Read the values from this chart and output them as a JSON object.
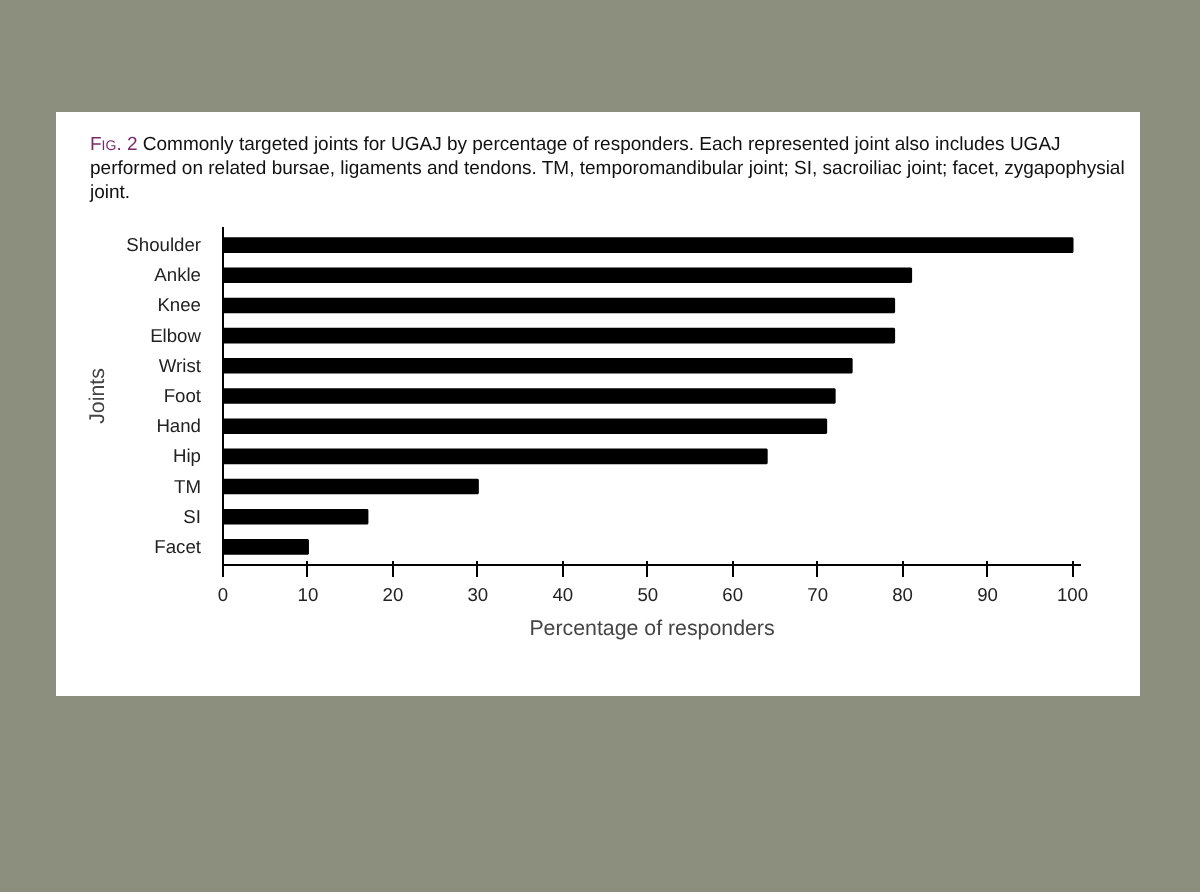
{
  "chart_data": {
    "type": "bar",
    "orientation": "horizontal",
    "title": "Fig. 2 Commonly targeted joints for UGAJ by percentage of responders. Each represented joint also includes UGAJ performed on related bursae, ligaments and tendons. TM, temporomandibular joint; SI, sacroiliac joint; facet, zygapophysial joint.",
    "categories": [
      "Shoulder",
      "Ankle",
      "Knee",
      "Elbow",
      "Wrist",
      "Foot",
      "Hand",
      "Hip",
      "TM",
      "SI",
      "Facet"
    ],
    "values": [
      100,
      81,
      79,
      79,
      74,
      72,
      71,
      64,
      30,
      17,
      10
    ],
    "color": "#000000",
    "xlim": [
      0,
      101
    ],
    "xticks": [
      0,
      10,
      20,
      30,
      40,
      50,
      60,
      70,
      80,
      90,
      100
    ],
    "xlabel": "Percentage of responders",
    "ylabel": "Joints",
    "grid": false
  }
}
